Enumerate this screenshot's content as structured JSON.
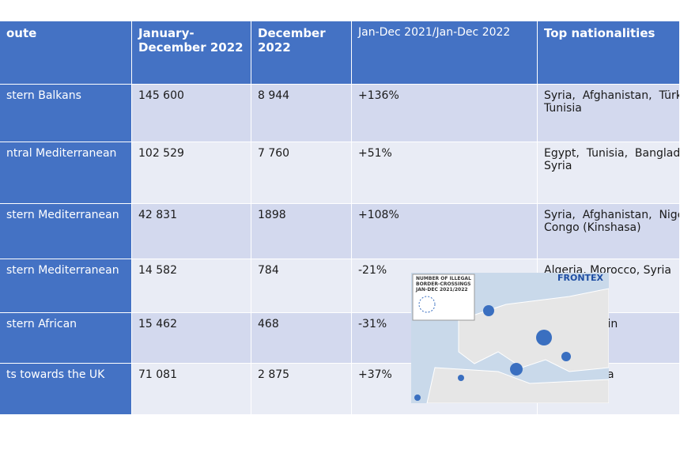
{
  "table": {
    "header": [
      "oute",
      "January-\nDecember 2022",
      "December\n2022",
      "Jan-Dec 2021/Jan-Dec 2022",
      "Top nationalities"
    ],
    "rows": [
      [
        "stern Balkans",
        "145 600",
        "8 944",
        "+136%",
        [
          "Syria,  Afghanistan,  Türk",
          "Tunisia"
        ]
      ],
      [
        "ntral Mediterranean",
        "102 529",
        "7 760",
        "+51%",
        [
          "Egypt,  Tunisia,  Banglade",
          "Syria"
        ]
      ],
      [
        "stern Mediterranean",
        "42 831",
        "1898",
        "+108%",
        [
          "Syria,  Afghanistan,  Nige",
          "Congo (Kinshasa)"
        ]
      ],
      [
        "stern Mediterranean",
        "14 582",
        "784",
        "-21%",
        [
          "Algeria, Morocco, Syria"
        ]
      ],
      [
        "stern African",
        "15 462",
        "468",
        "-31%",
        [
          "enegal,  Guin"
        ]
      ],
      [
        "ts towards the UK",
        "71 081",
        "2 875",
        "+37%",
        [
          "Iraq, Albania"
        ]
      ]
    ]
  },
  "map": {
    "title": "NUMBER OF ILLEGAL BORDER-CROSSINGS JAN-DEC 2021/2022",
    "brand": "FRONTEX"
  }
}
